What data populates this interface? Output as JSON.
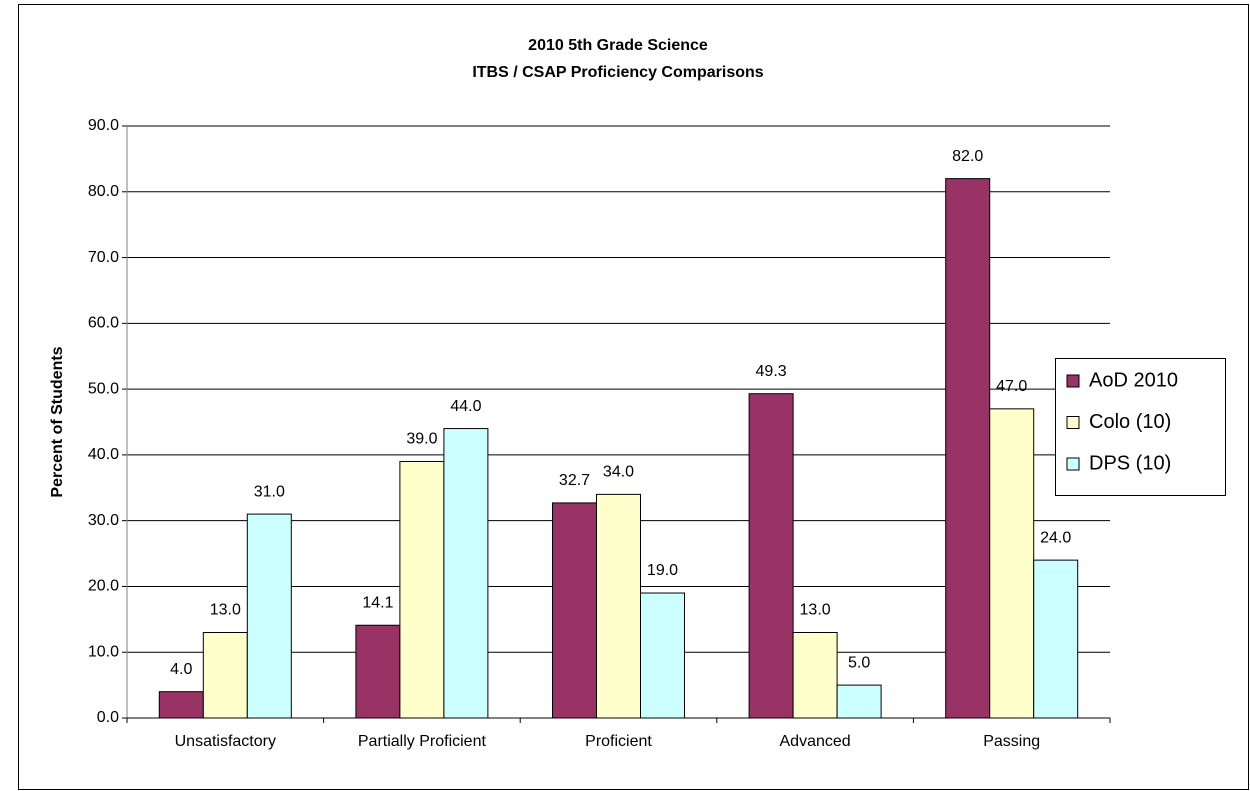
{
  "chart_data": {
    "type": "bar",
    "title": "2010 5th Grade Science",
    "subtitle": "ITBS / CSAP Proficiency Comparisons",
    "y_label": "Percent of Students",
    "categories": [
      "Unsatisfactory",
      "Partially Proficient",
      "Proficient",
      "Advanced",
      "Passing"
    ],
    "series": [
      {
        "name": "AoD 2010",
        "color": "#993366",
        "values": [
          4,
          14.1,
          32.7,
          49.3,
          82
        ],
        "value_labels": [
          "4.0",
          "14.1",
          "32.7",
          "49.3",
          "82.0"
        ]
      },
      {
        "name": "Colo (10)",
        "color": "#ffffcc",
        "values": [
          13,
          39,
          34,
          13,
          47
        ],
        "value_labels": [
          "13.0",
          "39.0",
          "34.0",
          "13.0",
          "47.0"
        ]
      },
      {
        "name": "DPS (10)",
        "color": "#ccffff",
        "values": [
          31,
          44,
          19,
          5,
          24
        ],
        "value_labels": [
          "31.0",
          "44.0",
          "19.0",
          "5.0",
          "24.0"
        ]
      }
    ],
    "ylim": [
      0,
      90
    ],
    "yticks": [
      {
        "value": 0,
        "label": "0.0"
      },
      {
        "value": 10,
        "label": "10.0"
      },
      {
        "value": 20,
        "label": "20.0"
      },
      {
        "value": 30,
        "label": "30.0"
      },
      {
        "value": 40,
        "label": "40.0"
      },
      {
        "value": 50,
        "label": "50.0"
      },
      {
        "value": 60,
        "label": "60.0"
      },
      {
        "value": 70,
        "label": "70.0"
      },
      {
        "value": 80,
        "label": "80.0"
      },
      {
        "value": 90,
        "label": "90.0"
      }
    ],
    "grid": true,
    "legend": "right"
  }
}
